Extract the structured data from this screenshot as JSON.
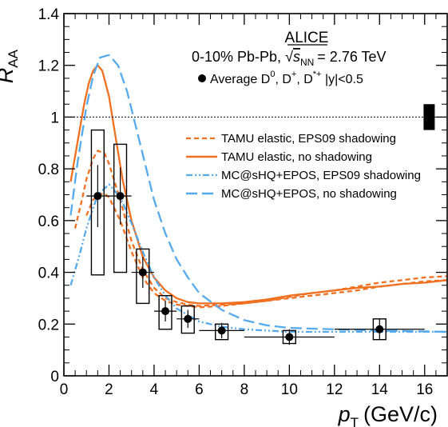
{
  "chart_data": {
    "type": "line",
    "title": "",
    "experiment": "ALICE",
    "system_prefix": "0-10% Pb-Pb, ",
    "system_energy": "= 2.76 TeV",
    "average_label": "Average D",
    "average_label_rest": ", D",
    "average_label_rest2": ", D",
    "average_label_tail": " |y|<0.5",
    "xlabel": "p",
    "xlabel_sub": "T",
    "xlabel_unit": "(GeV/c)",
    "ylabel": "R",
    "ylabel_sub": "AA",
    "xlim": [
      0,
      17
    ],
    "ylim": [
      0,
      1.4
    ],
    "x_ticks": [
      0,
      2,
      4,
      6,
      8,
      10,
      12,
      14,
      16
    ],
    "y_ticks": [
      0,
      0.2,
      0.4,
      0.6,
      0.8,
      1,
      1.2,
      1.4
    ],
    "x_tick_labels": [
      "0",
      "2",
      "4",
      "6",
      "8",
      "10",
      "12",
      "14",
      "16"
    ],
    "y_tick_labels": [
      "0",
      "0.2",
      "0.4",
      "0.6",
      "0.8",
      "1",
      "1.2",
      "1.4"
    ],
    "reference_line": 1.0,
    "normalization_box": {
      "x": 16.2,
      "y_low": 0.95,
      "y_high": 1.05
    },
    "data_points": {
      "name": "Average D0, D+, D*+ |y|<0.5",
      "color": "#000000",
      "x": [
        1.5,
        2.5,
        3.5,
        4.5,
        5.5,
        7.0,
        10.0,
        14.0
      ],
      "x_err": [
        0.5,
        0.5,
        0.5,
        0.5,
        0.5,
        1.0,
        2.0,
        2.0
      ],
      "y": [
        0.695,
        0.695,
        0.4,
        0.25,
        0.22,
        0.175,
        0.15,
        0.18
      ],
      "y_err_stat": [
        0.12,
        0.11,
        0.06,
        0.04,
        0.035,
        0.03,
        0.03,
        0.04
      ],
      "sys_low": [
        0.39,
        0.4,
        0.28,
        0.18,
        0.165,
        0.14,
        0.125,
        0.14
      ],
      "sys_high": [
        0.95,
        0.895,
        0.49,
        0.31,
        0.27,
        0.2,
        0.175,
        0.22
      ]
    },
    "series": [
      {
        "name": "TAMU elastic, EPS09 shadowing",
        "color": "#f07020",
        "style": "short-dash",
        "x": [
          0.5,
          0.8,
          1.0,
          1.3,
          1.5,
          1.8,
          2.0,
          2.5,
          3.0,
          3.5,
          4.0,
          4.5,
          5.0,
          5.5,
          6.0,
          7.0,
          8.0,
          9.0,
          10.0,
          11.0,
          12.0,
          13.0,
          14.0,
          15.0,
          16.0,
          17.0
        ],
        "y": [
          0.57,
          0.68,
          0.76,
          0.84,
          0.87,
          0.86,
          0.82,
          0.68,
          0.52,
          0.41,
          0.34,
          0.3,
          0.285,
          0.275,
          0.27,
          0.275,
          0.28,
          0.29,
          0.3,
          0.31,
          0.32,
          0.33,
          0.345,
          0.355,
          0.365,
          0.37
        ]
      },
      {
        "name": "TAMU elastic, EPS09 shadowing (band)",
        "color": "#f07020",
        "style": "short-dash",
        "x": [
          1.0,
          1.3,
          1.5,
          1.8,
          2.0,
          2.5,
          3.0,
          3.5,
          4.0,
          4.5,
          5.0,
          5.5,
          6.0,
          7.0,
          8.0,
          9.0,
          10.0,
          11.0,
          12.0,
          13.0,
          14.0,
          15.0,
          16.0,
          17.0
        ],
        "y": [
          0.62,
          0.68,
          0.7,
          0.705,
          0.69,
          0.6,
          0.48,
          0.38,
          0.32,
          0.29,
          0.275,
          0.27,
          0.265,
          0.27,
          0.28,
          0.29,
          0.305,
          0.32,
          0.33,
          0.345,
          0.36,
          0.37,
          0.38,
          0.385
        ]
      },
      {
        "name": "TAMU elastic, no shadowing",
        "color": "#f07020",
        "style": "solid",
        "x": [
          0.3,
          0.6,
          0.9,
          1.1,
          1.3,
          1.5,
          1.7,
          2.0,
          2.3,
          2.6,
          3.0,
          3.5,
          4.0,
          4.5,
          5.0,
          5.5,
          6.0,
          7.0,
          8.0,
          9.0,
          10.0,
          11.0,
          12.0,
          13.0,
          14.0,
          15.0,
          16.0,
          17.0
        ],
        "y": [
          0.75,
          0.9,
          1.05,
          1.13,
          1.18,
          1.2,
          1.18,
          1.08,
          0.92,
          0.76,
          0.6,
          0.46,
          0.38,
          0.33,
          0.3,
          0.285,
          0.28,
          0.28,
          0.285,
          0.295,
          0.31,
          0.32,
          0.33,
          0.34,
          0.345,
          0.355,
          0.36,
          0.37
        ]
      },
      {
        "name": "MC@sHQ+EPOS, EPS09 shadowing",
        "color": "#55aaee",
        "style": "dash-dot-dot",
        "x": [
          0.3,
          0.7,
          1.0,
          1.5,
          2.0,
          2.5,
          3.0,
          3.5,
          4.0,
          4.5,
          5.0,
          6.0,
          7.0,
          8.0,
          9.0,
          10.0,
          12.0,
          14.0,
          17.0
        ],
        "y": [
          0.35,
          0.47,
          0.57,
          0.7,
          0.74,
          0.69,
          0.59,
          0.48,
          0.38,
          0.31,
          0.26,
          0.21,
          0.19,
          0.18,
          0.175,
          0.17,
          0.17,
          0.17,
          0.17
        ]
      },
      {
        "name": "MC@sHQ+EPOS, no shadowing",
        "color": "#55aaee",
        "style": "long-dash",
        "x": [
          0.3,
          0.6,
          1.0,
          1.3,
          1.6,
          2.0,
          2.4,
          2.8,
          3.2,
          3.6,
          4.0,
          4.5,
          5.0,
          5.5,
          6.0,
          7.0,
          8.0,
          9.0,
          10.0,
          12.0,
          14.0,
          17.0
        ],
        "y": [
          0.62,
          0.82,
          1.04,
          1.16,
          1.23,
          1.24,
          1.2,
          1.1,
          0.96,
          0.82,
          0.68,
          0.55,
          0.45,
          0.38,
          0.32,
          0.255,
          0.215,
          0.195,
          0.185,
          0.18,
          0.175,
          0.17
        ]
      }
    ],
    "legend_position": "right"
  }
}
